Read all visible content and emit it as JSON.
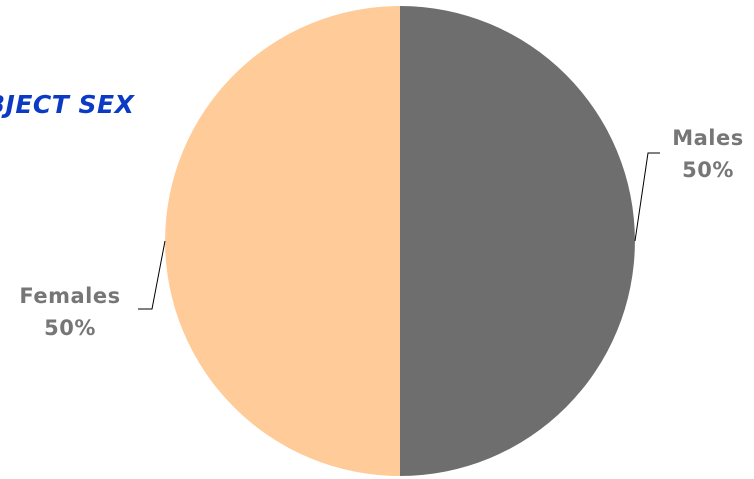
{
  "chart_data": {
    "type": "pie",
    "title": "BJECT SEX",
    "slices": [
      {
        "label": "Males",
        "value": 50,
        "percent_label": "50%",
        "color": "#6e6e6e"
      },
      {
        "label": "Females",
        "value": 50,
        "percent_label": "50%",
        "color": "#ffcc99"
      }
    ],
    "label_color": "#767676",
    "leader_line_color": "#000000",
    "title_color": "#0b3ac4"
  }
}
